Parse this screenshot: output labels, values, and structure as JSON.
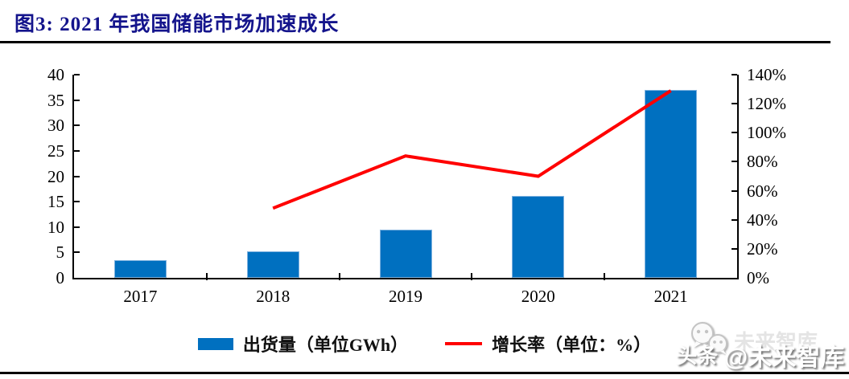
{
  "header": {
    "title": "图3: 2021 年我国储能市场加速成长"
  },
  "chart_data": {
    "type": "bar",
    "subtype": "bar-line-combo",
    "title": "图3: 2021 年我国储能市场加速成长",
    "categories": [
      "2017",
      "2018",
      "2019",
      "2020",
      "2021"
    ],
    "series": [
      {
        "name": "出货量（单位GWh）",
        "type": "bar",
        "axis": "left",
        "color": "#0070C0",
        "values": [
          3.5,
          5.2,
          9.5,
          16.2,
          37
        ]
      },
      {
        "name": "增长率（单位：%）",
        "type": "line",
        "axis": "right",
        "color": "#FF0000",
        "values": [
          null,
          48,
          84,
          70,
          129
        ]
      }
    ],
    "left_axis": {
      "min": 0,
      "max": 40,
      "step": 5,
      "tick_labels": [
        "0",
        "5",
        "10",
        "15",
        "20",
        "25",
        "30",
        "35",
        "40"
      ]
    },
    "right_axis": {
      "min": 0,
      "max": 140,
      "step": 20,
      "tick_labels": [
        "0%",
        "20%",
        "40%",
        "60%",
        "80%",
        "100%",
        "120%",
        "140%"
      ]
    },
    "grid": false,
    "legend_position": "bottom-center"
  },
  "watermark": {
    "ghost_text": "未来智库",
    "brand": "头条",
    "handle": "@未来智库",
    "icon": "chat-bubbles-icon"
  },
  "colors": {
    "title_text": "#14148C",
    "bar_fill": "#0070C0",
    "bar_edge": "#7FB2DF",
    "line_stroke": "#FF0000",
    "axis": "#000000",
    "rule": "#000000"
  }
}
